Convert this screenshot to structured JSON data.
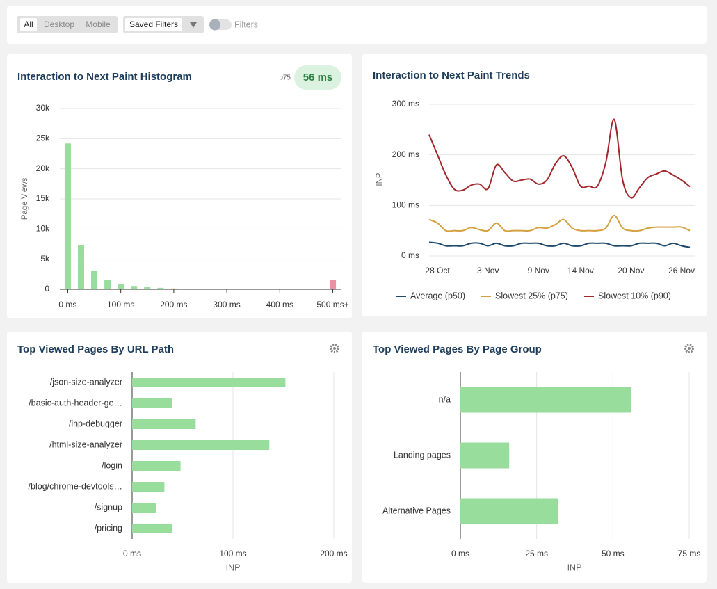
{
  "toolbar": {
    "device_options": [
      "All",
      "Desktop",
      "Mobile"
    ],
    "saved_filters": "Saved Filters",
    "filters_toggle": "Filters"
  },
  "chart_data": [
    {
      "type": "bar",
      "title": "Interaction to Next Paint Histogram",
      "badge_label": "p75",
      "badge_value": "56 ms",
      "y_label": "Page Views",
      "x": [
        0,
        25,
        50,
        75,
        100,
        125,
        150,
        175,
        200,
        225,
        250,
        275,
        300,
        325,
        350,
        375,
        400,
        425,
        450,
        475,
        500
      ],
      "values": [
        24200,
        7300,
        3100,
        1500,
        850,
        550,
        350,
        250,
        150,
        100,
        80,
        60,
        40,
        30,
        20,
        15,
        10,
        8,
        5,
        3,
        1600
      ],
      "colors": [
        "#98dd9c",
        "#98dd9c",
        "#98dd9c",
        "#98dd9c",
        "#98dd9c",
        "#98dd9c",
        "#98dd9c",
        "#98dd9c",
        "#f2d49a",
        "#f2d49a",
        "#f2d49a",
        "#f2d49a",
        "#f2d49a",
        "#f2d49a",
        "#f2d49a",
        "#f2d49a",
        "#f2d49a",
        "#f2d49a",
        "#f2d49a",
        "#f2d49a",
        "#e893a3"
      ],
      "xlim": [
        -15,
        515
      ],
      "xticks": [
        {
          "value": 0,
          "label": "0 ms"
        },
        {
          "value": 100,
          "label": "100 ms"
        },
        {
          "value": 200,
          "label": "200 ms"
        },
        {
          "value": 300,
          "label": "300 ms"
        },
        {
          "value": 400,
          "label": "400 ms"
        },
        {
          "value": 500,
          "label": "500 ms+"
        }
      ],
      "ylim": [
        0,
        30000
      ],
      "yticks": [
        0,
        {
          "value": 5000,
          "label": "5k"
        },
        {
          "value": 10000,
          "label": "10k"
        },
        {
          "value": 15000,
          "label": "15k"
        },
        {
          "value": 20000,
          "label": "20k"
        },
        {
          "value": 25000,
          "label": "25k"
        },
        {
          "value": 30000,
          "label": "30k"
        }
      ],
      "grid": true
    },
    {
      "type": "line",
      "title": "Interaction to Next Paint Trends",
      "y_label": "INP",
      "categories": [
        null,
        "28 Oct",
        null,
        null,
        null,
        null,
        null,
        "3 Nov",
        null,
        null,
        null,
        null,
        null,
        "9 Nov",
        null,
        null,
        null,
        null,
        "14 Nov",
        null,
        null,
        null,
        null,
        null,
        "20 Nov",
        null,
        null,
        null,
        null,
        null,
        "26 Nov",
        null
      ],
      "series": [
        {
          "name": "Average (p50)",
          "color": "#1f4a6b",
          "values": [
            27,
            25,
            20,
            20,
            20,
            25,
            25,
            20,
            25,
            20,
            20,
            25,
            25,
            25,
            20,
            20,
            25,
            20,
            20,
            25,
            25,
            25,
            20,
            20,
            20,
            25,
            25,
            25,
            20,
            25,
            20,
            17
          ]
        },
        {
          "name": "Slowest 25% (p75)",
          "color": "#d4a040",
          "values": [
            72,
            65,
            50,
            50,
            50,
            56,
            52,
            50,
            65,
            50,
            50,
            50,
            50,
            56,
            55,
            62,
            72,
            55,
            50,
            50,
            50,
            55,
            80,
            55,
            50,
            50,
            55,
            57,
            57,
            57,
            57,
            50
          ]
        },
        {
          "name": "Slowest 10% (p90)",
          "color": "#a3282b",
          "values": [
            240,
            200,
            160,
            132,
            130,
            140,
            142,
            133,
            180,
            165,
            148,
            150,
            152,
            142,
            150,
            182,
            198,
            175,
            138,
            138,
            138,
            185,
            270,
            150,
            115,
            135,
            155,
            162,
            168,
            160,
            150,
            137
          ]
        }
      ],
      "ylim": [
        0,
        300
      ],
      "yticks": [
        {
          "value": 0,
          "label": "0 ms"
        },
        {
          "value": 100,
          "label": "100 ms"
        },
        {
          "value": 200,
          "label": "200 ms"
        },
        {
          "value": 300,
          "label": "300 ms"
        }
      ],
      "grid": true,
      "legend": "bottom"
    },
    {
      "type": "bar",
      "horizontal": true,
      "title": "Top Viewed Pages By URL Path",
      "x_label": "INP",
      "color": "#98dd9c",
      "categories": [
        "/json-size-analyzer",
        "/basic-auth-header-ge…",
        "/inp-debugger",
        "/html-size-analyzer",
        "/login",
        "/blog/chrome-devtools…",
        "/signup",
        "/pricing"
      ],
      "values": [
        152,
        40,
        63,
        136,
        48,
        32,
        24,
        40
      ],
      "xlim": [
        0,
        200
      ],
      "xticks": [
        {
          "value": 0,
          "label": "0 ms"
        },
        {
          "value": 100,
          "label": "100 ms"
        },
        {
          "value": 200,
          "label": "200 ms"
        }
      ],
      "grid": true
    },
    {
      "type": "bar",
      "horizontal": true,
      "title": "Top Viewed Pages By Page Group",
      "x_label": "INP",
      "color": "#98dd9c",
      "categories": [
        "n/a",
        "Landing pages",
        "Alternative Pages"
      ],
      "values": [
        56,
        16,
        32
      ],
      "xlim": [
        0,
        75
      ],
      "xticks": [
        {
          "value": 0,
          "label": "0 ms"
        },
        {
          "value": 25,
          "label": "25 ms"
        },
        {
          "value": 50,
          "label": "50 ms"
        },
        {
          "value": 75,
          "label": "75 ms"
        }
      ],
      "grid": true
    }
  ]
}
